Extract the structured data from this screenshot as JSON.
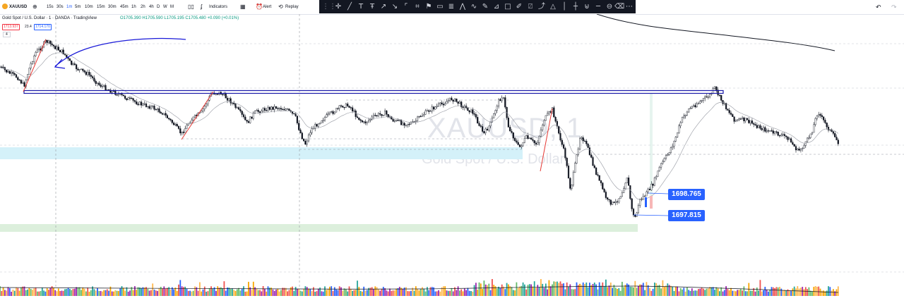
{
  "toolbar": {
    "symbol": "XAUUSD",
    "timeframes": [
      "15s",
      "30s",
      "1m",
      "5m",
      "10m",
      "15m",
      "30m",
      "45m",
      "1h",
      "2h",
      "4h",
      "D",
      "W",
      "M"
    ],
    "active_timeframe": "1m",
    "indicators_label": "Indicators",
    "alert_label": "Alert",
    "replay_label": "Replay"
  },
  "legend": {
    "title": "Gold Spot / U.S. Dollar · 1 · OANDA · TradingView",
    "ohlc": "O1705.390 H1705.590 L1705.195 C1705.480 +0.090 (+0.01%)",
    "bid": "1713.937",
    "spread": "23.4",
    "ask": "1714.170",
    "indicator_count": "4"
  },
  "watermark": {
    "symbol": "XAUUSD, 1",
    "name": "Gold Spot / U.S. Dollar"
  },
  "price_labels": [
    "1698.765",
    "1697.815"
  ],
  "colors": {
    "accent": "#2962ff",
    "candle": "#131722",
    "trendline": "#e53935",
    "zone_blue": "#d4f1f9",
    "zone_green": "#dcefdc",
    "level_rect": "#1a1aa8",
    "drawing_toolbar": "#131722"
  },
  "drawing_tools": [
    "crosshair-icon",
    "trend-line-icon",
    "brush-icon",
    "text-icon",
    "measure-icon",
    "zoom-icon",
    "magnet-icon",
    "lock-icon",
    "trash-icon"
  ]
}
